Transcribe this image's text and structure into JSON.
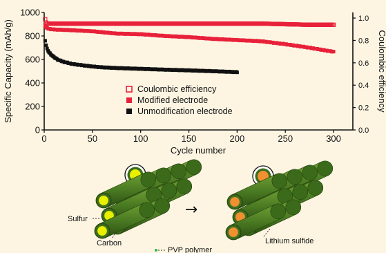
{
  "chart_data": {
    "type": "scatter",
    "title": "",
    "xlabel": "Cycle number",
    "ylabel": "Specific Capacity (mAh/g)",
    "y2label": "Coulombic efficiency",
    "xlim": [
      0,
      320
    ],
    "ylim": [
      0,
      1000
    ],
    "y2lim": [
      0,
      1.05
    ],
    "xticks": [
      "0",
      "50",
      "100",
      "150",
      "200",
      "250",
      "300"
    ],
    "yticks": [
      "0",
      "200",
      "400",
      "600",
      "800",
      "1000"
    ],
    "y2ticks": [
      "0.0",
      "0.2",
      "0.4",
      "0.6",
      "0.8",
      "1.0"
    ],
    "grid": false,
    "legend_position": "center",
    "series": [
      {
        "name": "Coulombic efficiency",
        "axis": "right",
        "marker": "open-square",
        "color": "#e8213a",
        "x": [
          1,
          2,
          3,
          5,
          10,
          25,
          50,
          75,
          100,
          125,
          150,
          175,
          200,
          225,
          250,
          275,
          300
        ],
        "y": [
          0.99,
          0.96,
          0.95,
          0.95,
          0.95,
          0.95,
          0.95,
          0.95,
          0.95,
          0.95,
          0.95,
          0.95,
          0.95,
          0.95,
          0.945,
          0.94,
          0.94
        ]
      },
      {
        "name": "Modified electrode",
        "axis": "left",
        "marker": "filled-square",
        "color": "#e8213a",
        "x": [
          1,
          2,
          5,
          10,
          25,
          50,
          75,
          100,
          125,
          150,
          175,
          200,
          225,
          250,
          275,
          300
        ],
        "y": [
          885,
          870,
          860,
          855,
          850,
          840,
          820,
          815,
          800,
          790,
          775,
          765,
          755,
          730,
          700,
          665
        ]
      },
      {
        "name": "Unmodification electrode",
        "axis": "left",
        "marker": "filled-square",
        "color": "#111111",
        "x": [
          1,
          2,
          3,
          5,
          8,
          10,
          15,
          20,
          25,
          30,
          40,
          50,
          60,
          75,
          100,
          125,
          150,
          175,
          200
        ],
        "y": [
          760,
          720,
          690,
          660,
          635,
          620,
          595,
          580,
          570,
          560,
          550,
          540,
          533,
          527,
          520,
          513,
          507,
          500,
          492
        ]
      }
    ]
  },
  "schematic": {
    "arrow": "→",
    "labels": {
      "sulfur": "Sulfur",
      "carbon": "Carbon",
      "pvp": "PVP polymer",
      "lithium_sulfide": "Lithium sulfide"
    },
    "colors": {
      "tube": "#4a7a22",
      "sulfur": "#e8f000",
      "lithium_sulfide": "#f09030"
    }
  }
}
